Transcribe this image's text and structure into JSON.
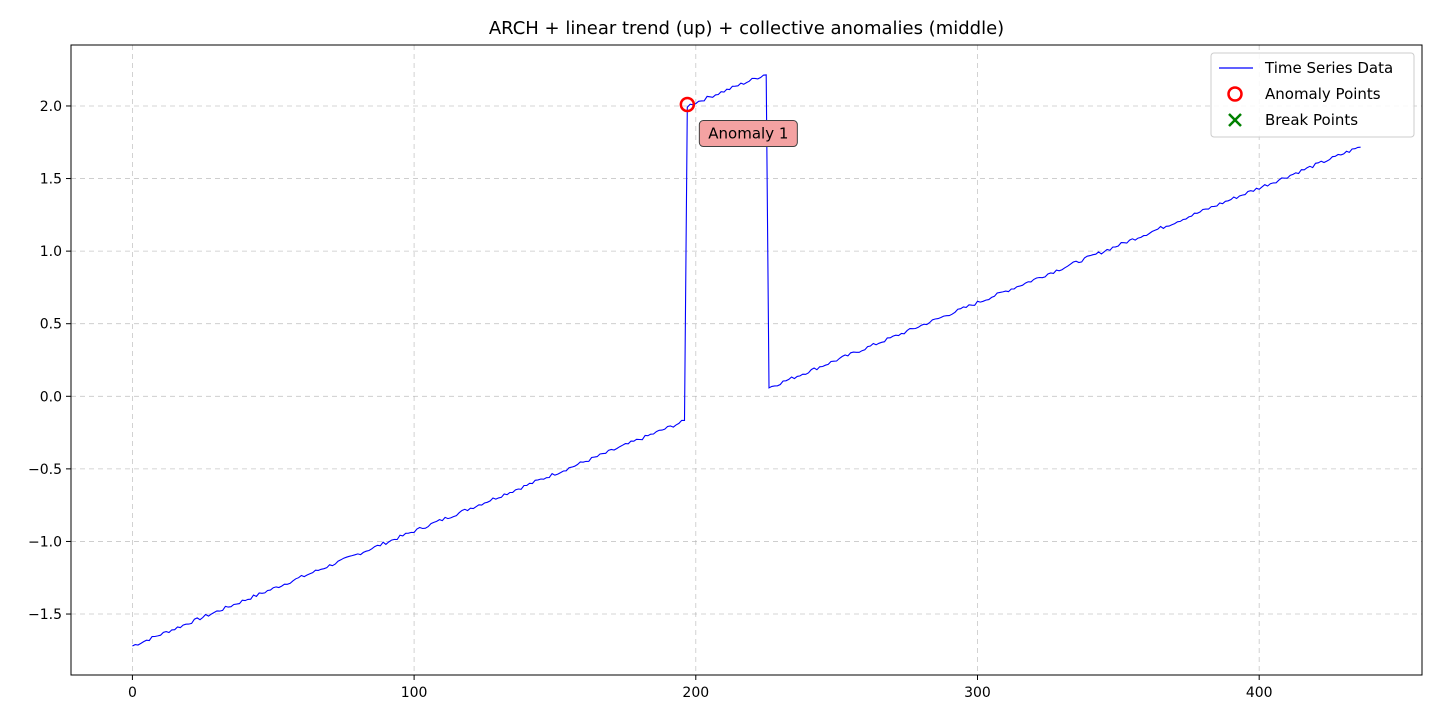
{
  "chart_data": {
    "type": "line",
    "title": "ARCH + linear trend (up) + collective anomalies (middle)",
    "xlabel": "",
    "ylabel": "",
    "xlim": [
      -21.8,
      457.8
    ],
    "ylim": [
      -1.92,
      2.42
    ],
    "x_ticks": [
      0,
      100,
      200,
      300,
      400
    ],
    "y_ticks": [
      -1.5,
      -1.0,
      -0.5,
      0.0,
      0.5,
      1.0,
      1.5,
      2.0
    ],
    "y_tick_labels": [
      "−1.5",
      "−1.0",
      "−0.5",
      "0.0",
      "0.5",
      "1.0",
      "1.5",
      "2.0"
    ],
    "x_tick_labels": [
      "0",
      "100",
      "200",
      "300",
      "400"
    ],
    "grid": true,
    "legend_position": "top-right",
    "legend": [
      {
        "label": "Time Series Data",
        "marker": "line",
        "color": "#0000ff"
      },
      {
        "label": "Anomaly Points",
        "marker": "circle",
        "color": "#ff0000"
      },
      {
        "label": "Break Points",
        "marker": "x",
        "color": "#008000"
      }
    ],
    "series": [
      {
        "name": "Time Series Data",
        "color": "#0000ff",
        "segments": [
          {
            "x_start": 0,
            "x_end": 196,
            "y_start": -1.72,
            "y_end": -0.17
          },
          {
            "x_start": 197,
            "x_end": 225,
            "y_start": 2.0,
            "y_end": 2.22
          },
          {
            "x_start": 226,
            "x_end": 436,
            "y_start": 0.06,
            "y_end": 1.72
          }
        ],
        "noise_amplitude": 0.012
      }
    ],
    "anomaly_points": [
      {
        "x": 197,
        "y": 2.01
      }
    ],
    "break_points": [],
    "annotations": [
      {
        "text": "Anomaly 1",
        "x": 197,
        "y": 2.01
      }
    ]
  }
}
